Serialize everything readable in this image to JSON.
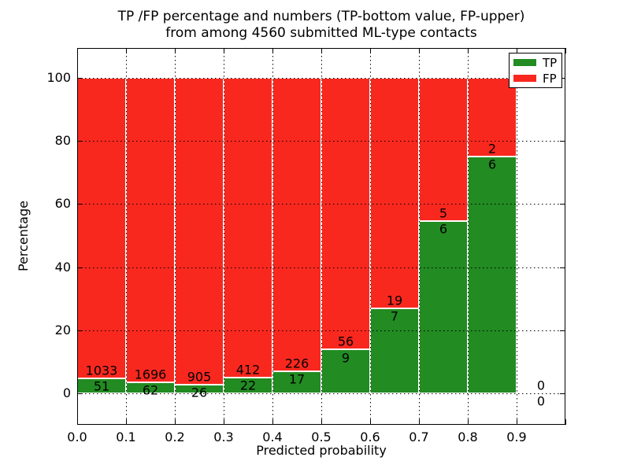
{
  "title": {
    "line1": "TP /FP percentage and numbers (TP-bottom value, FP-upper)",
    "line2": "from among 4560 submitted ML-type contacts"
  },
  "axes": {
    "xlabel": "Predicted probability",
    "ylabel": "Percentage",
    "x_tick_labels": [
      "0.0",
      "0.1",
      "0.2",
      "0.3",
      "0.4",
      "0.5",
      "0.6",
      "0.7",
      "0.8",
      "0.9"
    ],
    "y_tick_labels": [
      "0",
      "20",
      "40",
      "60",
      "80",
      "100"
    ],
    "y_tick_values": [
      0,
      20,
      40,
      60,
      80,
      100
    ]
  },
  "legend": {
    "position": "upper right",
    "entries": [
      {
        "label": "TP",
        "color": "#228b22"
      },
      {
        "label": "FP",
        "color": "#f9281f"
      }
    ]
  },
  "colors": {
    "tp_green": "#228b22",
    "fp_red": "#f9281f",
    "bar_edge": "#ffffff",
    "text": "#000000",
    "background": "#ffffff"
  },
  "chart_data": {
    "type": "bar",
    "stacked": true,
    "normalized_to_percent": true,
    "title": "TP /FP percentage and numbers (TP-bottom value, FP-upper) from among 4560 submitted ML-type contacts",
    "xlabel": "Predicted probability",
    "ylabel": "Percentage",
    "total_contacts": 4560,
    "bin_width": 0.1,
    "bin_edges": [
      0.0,
      0.1,
      0.2,
      0.3,
      0.4,
      0.5,
      0.6,
      0.7,
      0.8,
      0.9,
      1.0
    ],
    "categories": [
      "0.0-0.1",
      "0.1-0.2",
      "0.2-0.3",
      "0.3-0.4",
      "0.4-0.5",
      "0.5-0.6",
      "0.6-0.7",
      "0.7-0.8",
      "0.8-0.9",
      "0.9-1.0"
    ],
    "series": [
      {
        "name": "TP",
        "color": "#228b22",
        "counts": [
          51,
          62,
          26,
          22,
          17,
          9,
          7,
          6,
          6,
          0
        ]
      },
      {
        "name": "FP",
        "color": "#f9281f",
        "counts": [
          1033,
          1696,
          905,
          412,
          226,
          56,
          19,
          5,
          2,
          0
        ]
      }
    ],
    "bar_annotations": "FP count printed above the TP/FP boundary, TP count printed below it, for every bin",
    "xlim": [
      0.0,
      1.0
    ],
    "ylim": [
      -10.5,
      109.5
    ],
    "grid": "dotted, on top of bars",
    "legend_position": "upper right"
  }
}
